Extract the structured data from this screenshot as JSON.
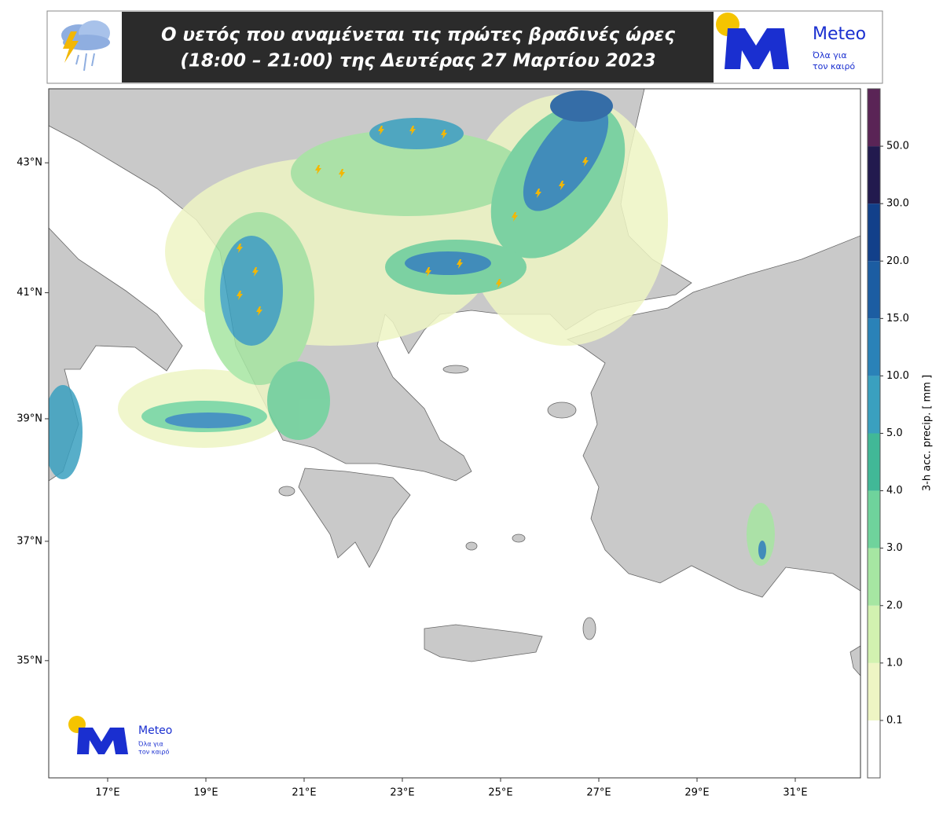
{
  "header": {
    "title_lines": [
      "Ο υετός που αναμένεται τις πρώτες βραδινές ώρες",
      "(18:00 – 21:00) της Δευτέρας 27 Μαρτίου 2023"
    ],
    "logo": {
      "name": "Meteo",
      "tagline": [
        "Όλα για",
        "τον καιρό"
      ]
    }
  },
  "map": {
    "projection": "mercator",
    "xticks": [
      {
        "value": 17,
        "label": "17°E"
      },
      {
        "value": 19,
        "label": "19°E"
      },
      {
        "value": 21,
        "label": "21°E"
      },
      {
        "value": 23,
        "label": "23°E"
      },
      {
        "value": 25,
        "label": "25°E"
      },
      {
        "value": 27,
        "label": "27°E"
      },
      {
        "value": 29,
        "label": "29°E"
      },
      {
        "value": 31,
        "label": "31°E"
      }
    ],
    "yticks": [
      {
        "value": 43,
        "label": "43°N"
      },
      {
        "value": 41,
        "label": "41°N"
      },
      {
        "value": 39,
        "label": "39°N"
      },
      {
        "value": 37,
        "label": "37°N"
      },
      {
        "value": 35,
        "label": "35°N"
      }
    ],
    "watermark": {
      "name": "Meteo",
      "tagline": [
        "Όλα για",
        "τον καιρό"
      ]
    }
  },
  "colorbar": {
    "label": "3-h acc. precip. [ mm ]",
    "ticks": [
      {
        "value": 0.1,
        "label": "0.1"
      },
      {
        "value": 1,
        "label": "1.0"
      },
      {
        "value": 2,
        "label": "2.0"
      },
      {
        "value": 3,
        "label": "3.0"
      },
      {
        "value": 4,
        "label": "4.0"
      },
      {
        "value": 5,
        "label": "5.0"
      },
      {
        "value": 10,
        "label": "10.0"
      },
      {
        "value": 15,
        "label": "15.0"
      },
      {
        "value": 20,
        "label": "20.0"
      },
      {
        "value": 30,
        "label": "30.0"
      },
      {
        "value": 50,
        "label": "50.0"
      }
    ],
    "colors": [
      "#ffffff",
      "#eef5c4",
      "#d2f2b0",
      "#a6e6a2",
      "#6fd39c",
      "#41b897",
      "#3aa0bf",
      "#2a82b8",
      "#1c5da2",
      "#12408a",
      "#221a4e",
      "#5a2456"
    ]
  }
}
